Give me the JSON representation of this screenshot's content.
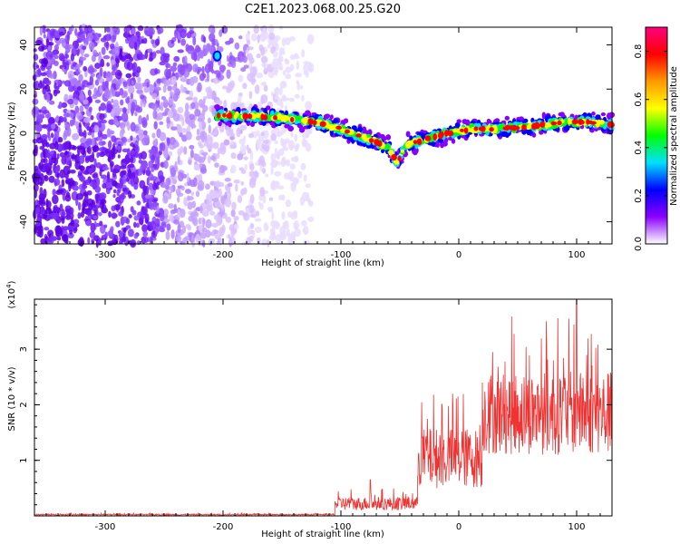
{
  "title": "C2E1.2023.068.00.25.G20",
  "chart_data": [
    {
      "type": "heatmap",
      "xlabel": "Height of straight line (km)",
      "ylabel": "Frequency (Hz)",
      "xlim": [
        -360,
        130
      ],
      "ylim": [
        -50,
        48
      ],
      "xticks": [
        -300,
        -200,
        -100,
        0,
        100
      ],
      "yticks": [
        -40,
        -20,
        0,
        20,
        40
      ],
      "colorbar": {
        "label": "Normalized spectral amplitude",
        "range": [
          0.0,
          0.9
        ],
        "ticks": [
          0.0,
          0.2,
          0.4,
          0.6,
          0.8
        ],
        "colormap": [
          "#ffffff",
          "#8a00ff",
          "#0000ff",
          "#00e0ff",
          "#00ff00",
          "#ffff00",
          "#ff9900",
          "#ff0000",
          "#ff0080"
        ]
      },
      "signal_ridge": {
        "x": [
          -205,
          -180,
          -150,
          -120,
          -100,
          -80,
          -60,
          -52,
          -45,
          -30,
          -10,
          10,
          30,
          60,
          90,
          110,
          130
        ],
        "y": [
          8,
          8,
          7,
          5,
          2,
          -2,
          -6,
          -14,
          -5,
          -3,
          0,
          2,
          2,
          3,
          5,
          5,
          4
        ]
      },
      "noise_region": {
        "x": [
          -360,
          -125
        ],
        "y": [
          -50,
          48
        ]
      }
    },
    {
      "type": "line",
      "xlabel": "Height of straight line (km)",
      "ylabel": "SNR (10 * v/v)",
      "yscale_label": "(x10",
      "yscale_exp": "4",
      "xlim": [
        -360,
        130
      ],
      "ylim": [
        0,
        3.9
      ],
      "xticks": [
        -300,
        -200,
        -100,
        0,
        100
      ],
      "yticks": [
        1,
        2,
        3
      ],
      "color": "#ee3333",
      "segments": [
        {
          "x": [
            -360,
            -105
          ],
          "base": 0.01,
          "amp": 0.04
        },
        {
          "x": [
            -105,
            -35
          ],
          "base": 0.1,
          "amp": 0.4,
          "peak_x": -75,
          "peak_y": 0.65
        },
        {
          "x": [
            -35,
            20
          ],
          "base": 0.5,
          "amp": 1.8
        },
        {
          "x": [
            20,
            130
          ],
          "base": 1.1,
          "amp": 2.5,
          "peak_x": 100,
          "peak_y": 3.9
        }
      ]
    }
  ]
}
